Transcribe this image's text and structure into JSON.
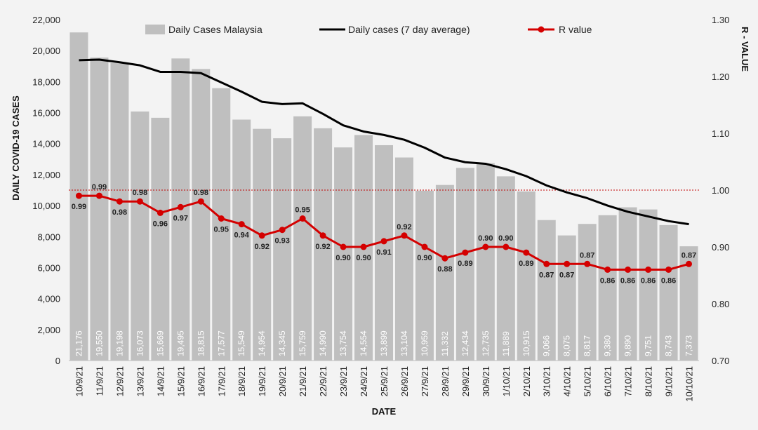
{
  "chart_data": {
    "type": "bar+line",
    "categories": [
      "10/9/21",
      "11/9/21",
      "12/9/21",
      "13/9/21",
      "14/9/21",
      "15/9/21",
      "16/9/21",
      "17/9/21",
      "18/9/21",
      "19/9/21",
      "20/9/21",
      "21/9/21",
      "22/9/21",
      "23/9/21",
      "24/9/21",
      "25/9/21",
      "26/9/21",
      "27/9/21",
      "28/9/21",
      "29/9/21",
      "30/9/21",
      "1/10/21",
      "2/10/21",
      "3/10/21",
      "4/10/21",
      "5/10/21",
      "6/10/21",
      "7/10/21",
      "8/10/21",
      "9/10/21",
      "10/10/21"
    ],
    "series": [
      {
        "name": "Daily Cases Malaysia",
        "kind": "bar",
        "axis": "left",
        "color": "#bfbfbf",
        "values": [
          21176,
          19550,
          19198,
          16073,
          15669,
          19495,
          18815,
          17577,
          15549,
          14954,
          14345,
          15759,
          14990,
          13754,
          14554,
          13899,
          13104,
          10959,
          11332,
          12434,
          12735,
          11889,
          10915,
          9066,
          8075,
          8817,
          9380,
          9890,
          9751,
          8743,
          7373
        ],
        "labels": [
          "21,176",
          "19,550",
          "19,198",
          "16,073",
          "15,669",
          "19,495",
          "18,815",
          "17,577",
          "15,549",
          "14,954",
          "14,345",
          "15,759",
          "14,990",
          "13,754",
          "14,554",
          "13,899",
          "13,104",
          "10,959",
          "11,332",
          "12,434",
          "12,735",
          "11,889",
          "10,915",
          "9,066",
          "8,075",
          "8,817",
          "9,380",
          "9,890",
          "9,751",
          "8,743",
          "7,373"
        ]
      },
      {
        "name": "Daily cases (7 day average)",
        "kind": "line",
        "axis": "left",
        "color": "#000000",
        "values": [
          19380,
          19420,
          19250,
          19050,
          18630,
          18630,
          18550,
          17950,
          17350,
          16700,
          16550,
          16600,
          15920,
          15180,
          14780,
          14560,
          14250,
          13740,
          13100,
          12800,
          12700,
          12350,
          11900,
          11300,
          10850,
          10480,
          10000,
          9600,
          9300,
          9000,
          8800
        ]
      },
      {
        "name": "R value",
        "kind": "line-markers",
        "axis": "right",
        "color": "#d40000",
        "values": [
          0.99,
          0.99,
          0.98,
          0.98,
          0.96,
          0.97,
          0.98,
          0.95,
          0.94,
          0.92,
          0.93,
          0.95,
          0.92,
          0.9,
          0.9,
          0.91,
          0.92,
          0.9,
          0.88,
          0.89,
          0.9,
          0.9,
          0.89,
          0.87,
          0.87,
          0.87,
          0.86,
          0.86,
          0.86,
          0.86,
          0.87
        ],
        "labels": [
          "0.99",
          "0.99",
          "0.98",
          "0.98",
          "0.96",
          "0.97",
          "0.98",
          "0.95",
          "0.94",
          "0.92",
          "0.93",
          "0.95",
          "0.92",
          "0.90",
          "0.90",
          "0.91",
          "0.92",
          "0.90",
          "0.88",
          "0.89",
          "0.90",
          "0.90",
          "0.89",
          "0.87",
          "0.87",
          "0.87",
          "0.86",
          "0.86",
          "0.86",
          "0.86",
          "0.87"
        ]
      }
    ],
    "reference_line": {
      "axis": "right",
      "value": 1.0,
      "color": "#c00000",
      "style": "dotted"
    },
    "y_left": {
      "label": "DAILY COVID-19 CASES",
      "min": 0,
      "max": 22000,
      "ticks": [
        0,
        2000,
        4000,
        6000,
        8000,
        10000,
        12000,
        14000,
        16000,
        18000,
        20000,
        22000
      ],
      "tick_labels": [
        "0",
        "2,000",
        "4,000",
        "6,000",
        "8,000",
        "10,000",
        "12,000",
        "14,000",
        "16,000",
        "18,000",
        "20,000",
        "22,000"
      ]
    },
    "y_right": {
      "label": "R - VALUE",
      "min": 0.7,
      "max": 1.3,
      "ticks": [
        0.7,
        0.8,
        0.9,
        1.0,
        1.1,
        1.2,
        1.3
      ],
      "tick_labels": [
        "0.70",
        "0.80",
        "0.90",
        "1.00",
        "1.10",
        "1.20",
        "1.30"
      ]
    },
    "xlabel": "DATE",
    "legend": {
      "position": "top"
    },
    "grid": false
  }
}
